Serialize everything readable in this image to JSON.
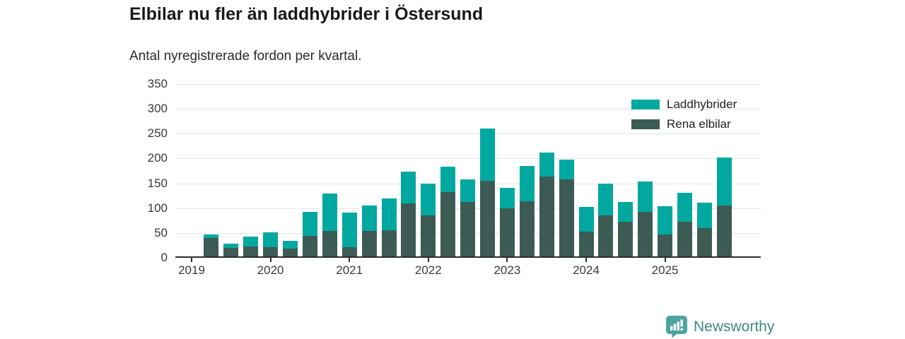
{
  "header": {
    "title": "Elbilar nu fler än laddhybrider i Östersund",
    "subtitle": "Antal nyregistrerade fordon per kvartal."
  },
  "legend": {
    "items": [
      {
        "label": "Laddhybrider",
        "color": "#00a89f"
      },
      {
        "label": "Rena elbilar",
        "color": "#3d5b55"
      }
    ]
  },
  "footer": {
    "brand": "Newsworthy",
    "brand_color": "#3e8a88",
    "badge_color": "#4ba4a1"
  },
  "chart_data": {
    "type": "bar",
    "stacked": true,
    "title": "Elbilar nu fler än laddhybrider i Östersund",
    "subtitle": "Antal nyregistrerade fordon per kvartal.",
    "xlabel": "",
    "ylabel": "",
    "ylim": [
      0,
      350
    ],
    "yticks": [
      0,
      50,
      100,
      150,
      200,
      250,
      300,
      350
    ],
    "grid": true,
    "legend_position": "top-right",
    "categories": [
      "2019 K1",
      "2019 K2",
      "2019 K3",
      "2019 K4",
      "2020 K1",
      "2020 K2",
      "2020 K3",
      "2020 K4",
      "2021 K1",
      "2021 K2",
      "2021 K3",
      "2021 K4",
      "2022 K1",
      "2022 K2",
      "2022 K3",
      "2022 K4",
      "2023 K1",
      "2023 K2",
      "2023 K3",
      "2023 K4",
      "2024 K1",
      "2024 K2",
      "2024 K3",
      "2024 K4",
      "2025 K1",
      "2025 K2",
      "2025 K3",
      "2025 K4"
    ],
    "year_ticks": [
      {
        "label": "2019",
        "slot": 0
      },
      {
        "label": "2020",
        "slot": 4
      },
      {
        "label": "2021",
        "slot": 8
      },
      {
        "label": "2022",
        "slot": 12
      },
      {
        "label": "2023",
        "slot": 16
      },
      {
        "label": "2024",
        "slot": 20
      },
      {
        "label": "2025",
        "slot": 24
      }
    ],
    "series": [
      {
        "name": "Laddhybrider",
        "color": "#00a89f",
        "values": [
          0,
          7,
          8,
          20,
          30,
          16,
          48,
          75,
          70,
          51,
          64,
          63,
          64,
          51,
          46,
          105,
          41,
          71,
          48,
          40,
          51,
          64,
          40,
          61,
          57,
          58,
          51,
          96
        ]
      },
      {
        "name": "Rena elbilar",
        "color": "#3d5b55",
        "values": [
          0,
          40,
          20,
          23,
          21,
          18,
          44,
          54,
          21,
          54,
          55,
          110,
          86,
          133,
          112,
          155,
          100,
          114,
          164,
          158,
          52,
          86,
          73,
          92,
          47,
          73,
          60,
          106
        ]
      }
    ]
  }
}
